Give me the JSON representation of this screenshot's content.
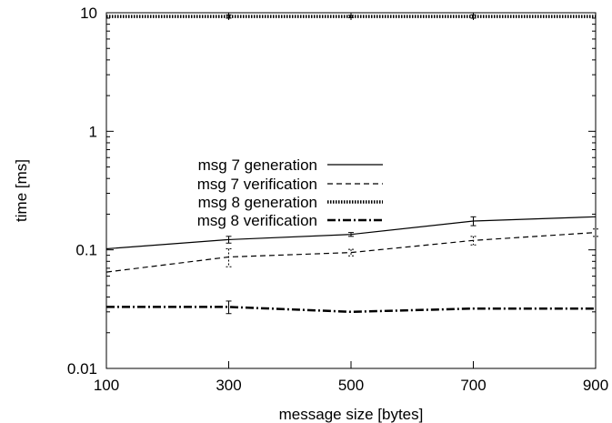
{
  "chart_data": {
    "type": "line",
    "title": "",
    "xlabel": "message size [bytes]",
    "ylabel": "time [ms]",
    "x": [
      100,
      300,
      500,
      700,
      900
    ],
    "xlim": [
      100,
      900
    ],
    "xticks": [
      "100",
      "300",
      "500",
      "700",
      "900"
    ],
    "ylim": [
      0.01,
      10
    ],
    "yscale": "log",
    "yticks": [
      "0.01",
      "0.1",
      "1",
      "10"
    ],
    "grid": false,
    "legend_position": "center-left",
    "series": [
      {
        "name": "msg 7 generation",
        "style": "solid",
        "values": [
          0.102,
          0.122,
          0.135,
          0.175,
          0.19
        ],
        "errors": [
          null,
          0.008,
          0.005,
          0.015,
          null
        ]
      },
      {
        "name": "msg 7 verification",
        "style": "dashed",
        "values": [
          0.065,
          0.087,
          0.095,
          0.12,
          0.14
        ],
        "errors": [
          null,
          0.015,
          0.006,
          0.01,
          0.01
        ]
      },
      {
        "name": "msg 8 generation",
        "style": "dotted",
        "values": [
          9.3,
          9.3,
          9.3,
          9.3,
          9.3
        ],
        "errors": [
          null,
          0.3,
          0.2,
          0.3,
          null
        ]
      },
      {
        "name": "msg 8 verification",
        "style": "dashdot",
        "values": [
          0.033,
          0.033,
          0.03,
          0.032,
          0.032
        ],
        "errors": [
          null,
          0.004,
          null,
          null,
          null
        ]
      }
    ]
  }
}
